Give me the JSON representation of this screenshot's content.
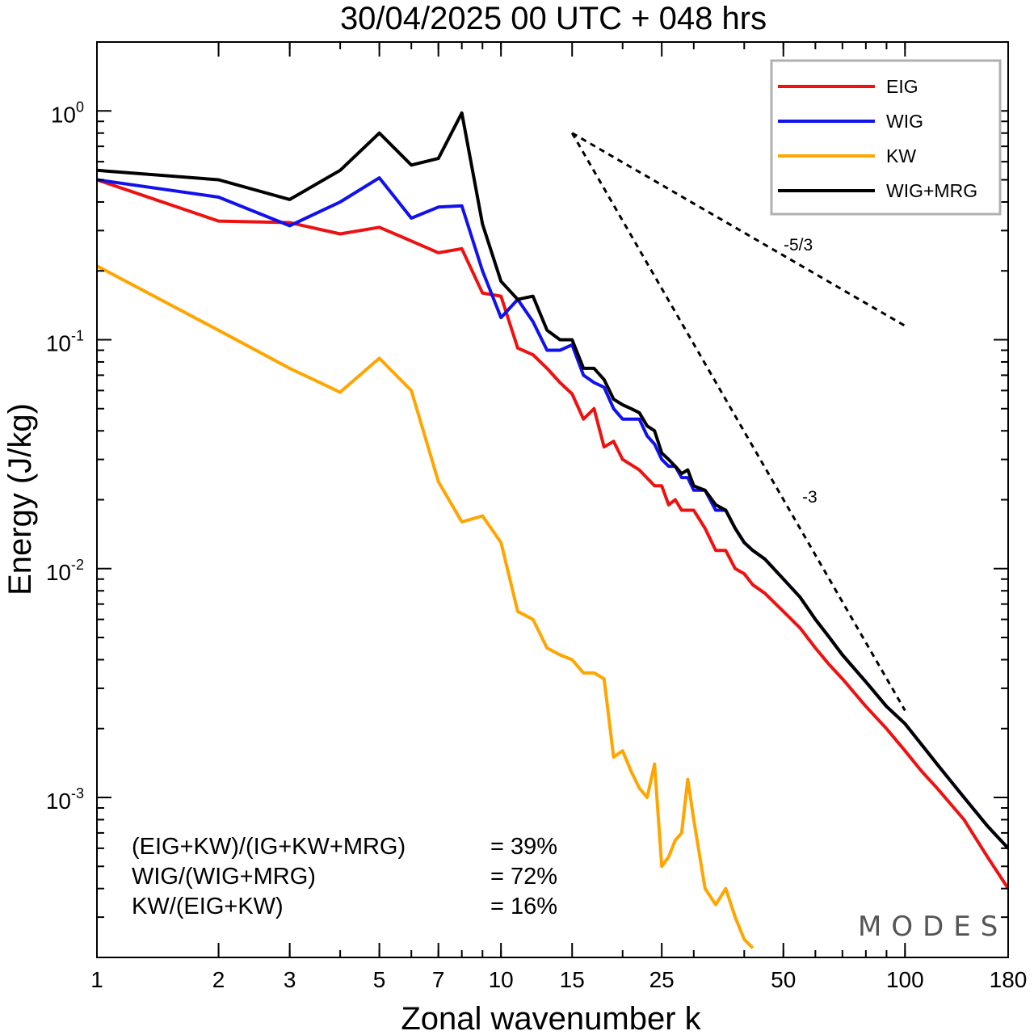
{
  "chart_data": {
    "type": "line",
    "title": "30/04/2025  00 UTC  + 048 hrs",
    "xlabel": "Zonal wavenumber k",
    "ylabel": "Energy (J/kg)",
    "xscale": "log",
    "yscale": "log",
    "xlim": [
      1,
      180
    ],
    "ylim": [
      0.0002,
      2
    ],
    "xticks": [
      1,
      2,
      3,
      5,
      7,
      10,
      15,
      25,
      50,
      100,
      180
    ],
    "xtick_labels": [
      "1",
      "2",
      "3",
      "5",
      "7",
      "10",
      "15",
      "25",
      "50",
      "100",
      "180"
    ],
    "yticks": [
      {
        "base": "10",
        "exp": "0"
      },
      {
        "base": "10",
        "exp": "-1"
      },
      {
        "base": "10",
        "exp": "-2"
      },
      {
        "base": "10",
        "exp": "-3"
      }
    ],
    "legend_position": "top-right",
    "series": [
      {
        "name": "EIG",
        "color": "#ee1111",
        "points": [
          [
            1,
            0.5
          ],
          [
            2,
            0.33
          ],
          [
            3,
            0.325
          ],
          [
            4,
            0.29
          ],
          [
            5,
            0.31
          ],
          [
            6,
            0.27
          ],
          [
            7,
            0.24
          ],
          [
            8,
            0.25
          ],
          [
            9,
            0.16
          ],
          [
            10,
            0.155
          ],
          [
            11,
            0.092
          ],
          [
            12,
            0.086
          ],
          [
            13,
            0.075
          ],
          [
            14,
            0.065
          ],
          [
            15,
            0.058
          ],
          [
            16,
            0.045
          ],
          [
            17,
            0.05
          ],
          [
            18,
            0.034
          ],
          [
            19,
            0.036
          ],
          [
            20,
            0.03
          ],
          [
            22,
            0.027
          ],
          [
            24,
            0.023
          ],
          [
            25,
            0.023
          ],
          [
            26,
            0.019
          ],
          [
            27,
            0.02
          ],
          [
            28,
            0.018
          ],
          [
            30,
            0.018
          ],
          [
            32,
            0.015
          ],
          [
            34,
            0.012
          ],
          [
            36,
            0.012
          ],
          [
            38,
            0.01
          ],
          [
            40,
            0.0095
          ],
          [
            42,
            0.0085
          ],
          [
            45,
            0.0078
          ],
          [
            50,
            0.0065
          ],
          [
            55,
            0.0055
          ],
          [
            60,
            0.0045
          ],
          [
            65,
            0.0038
          ],
          [
            70,
            0.0033
          ],
          [
            80,
            0.0025
          ],
          [
            90,
            0.002
          ],
          [
            100,
            0.0016
          ],
          [
            110,
            0.0013
          ],
          [
            120,
            0.0011
          ],
          [
            140,
            0.0008
          ],
          [
            160,
            0.00055
          ],
          [
            180,
            0.0004
          ]
        ]
      },
      {
        "name": "WIG",
        "color": "#1111ee",
        "points": [
          [
            1,
            0.5
          ],
          [
            2,
            0.42
          ],
          [
            3,
            0.315
          ],
          [
            4,
            0.4
          ],
          [
            5,
            0.51
          ],
          [
            6,
            0.34
          ],
          [
            7,
            0.38
          ],
          [
            8,
            0.385
          ],
          [
            9,
            0.2
          ],
          [
            10,
            0.125
          ],
          [
            11,
            0.15
          ],
          [
            12,
            0.12
          ],
          [
            13,
            0.09
          ],
          [
            14,
            0.09
          ],
          [
            15,
            0.095
          ],
          [
            16,
            0.07
          ],
          [
            17,
            0.065
          ],
          [
            18,
            0.062
          ],
          [
            19,
            0.05
          ],
          [
            20,
            0.045
          ],
          [
            21,
            0.045
          ],
          [
            22,
            0.045
          ],
          [
            23,
            0.038
          ],
          [
            24,
            0.035
          ],
          [
            25,
            0.03
          ],
          [
            26,
            0.028
          ],
          [
            27,
            0.028
          ],
          [
            28,
            0.025
          ],
          [
            29,
            0.025
          ],
          [
            30,
            0.022
          ],
          [
            32,
            0.022
          ],
          [
            34,
            0.018
          ],
          [
            36,
            0.018
          ],
          [
            38,
            0.015
          ],
          [
            40,
            0.013
          ],
          [
            42,
            0.012
          ],
          [
            45,
            0.011
          ],
          [
            50,
            0.009
          ],
          [
            55,
            0.0075
          ],
          [
            60,
            0.006
          ],
          [
            65,
            0.005
          ],
          [
            70,
            0.0042
          ],
          [
            80,
            0.0032
          ],
          [
            90,
            0.0025
          ],
          [
            100,
            0.0021
          ],
          [
            110,
            0.0017
          ],
          [
            120,
            0.0014
          ],
          [
            140,
            0.001
          ],
          [
            160,
            0.00075
          ],
          [
            180,
            0.0006
          ]
        ]
      },
      {
        "name": "KW",
        "color": "#ffa500",
        "points": [
          [
            1,
            0.21
          ],
          [
            2,
            0.11
          ],
          [
            3,
            0.075
          ],
          [
            4,
            0.059
          ],
          [
            5,
            0.083
          ],
          [
            6,
            0.06
          ],
          [
            7,
            0.024
          ],
          [
            8,
            0.016
          ],
          [
            9,
            0.017
          ],
          [
            10,
            0.013
          ],
          [
            11,
            0.0065
          ],
          [
            12,
            0.006
          ],
          [
            13,
            0.0045
          ],
          [
            14,
            0.0042
          ],
          [
            15,
            0.004
          ],
          [
            16,
            0.0035
          ],
          [
            17,
            0.0035
          ],
          [
            18,
            0.0033
          ],
          [
            19,
            0.0015
          ],
          [
            20,
            0.0016
          ],
          [
            21,
            0.0013
          ],
          [
            22,
            0.0011
          ],
          [
            23,
            0.001
          ],
          [
            24,
            0.0014
          ],
          [
            25,
            0.0005
          ],
          [
            26,
            0.00055
          ],
          [
            27,
            0.00065
          ],
          [
            28,
            0.0007
          ],
          [
            29,
            0.0012
          ],
          [
            30,
            0.0008
          ],
          [
            32,
            0.0004
          ],
          [
            34,
            0.00034
          ],
          [
            36,
            0.0004
          ],
          [
            38,
            0.0003
          ],
          [
            40,
            0.00024
          ],
          [
            42,
            0.00022
          ]
        ]
      },
      {
        "name": "WIG+MRG",
        "color": "#000000",
        "points": [
          [
            1,
            0.55
          ],
          [
            2,
            0.5
          ],
          [
            3,
            0.41
          ],
          [
            4,
            0.55
          ],
          [
            5,
            0.8
          ],
          [
            6,
            0.58
          ],
          [
            7,
            0.62
          ],
          [
            8,
            0.98
          ],
          [
            9,
            0.32
          ],
          [
            10,
            0.18
          ],
          [
            11,
            0.15
          ],
          [
            12,
            0.155
          ],
          [
            13,
            0.11
          ],
          [
            14,
            0.1
          ],
          [
            15,
            0.1
          ],
          [
            16,
            0.075
          ],
          [
            17,
            0.075
          ],
          [
            18,
            0.067
          ],
          [
            19,
            0.055
          ],
          [
            20,
            0.052
          ],
          [
            21,
            0.05
          ],
          [
            22,
            0.048
          ],
          [
            23,
            0.042
          ],
          [
            24,
            0.04
          ],
          [
            25,
            0.032
          ],
          [
            26,
            0.03
          ],
          [
            27,
            0.028
          ],
          [
            28,
            0.026
          ],
          [
            29,
            0.027
          ],
          [
            30,
            0.023
          ],
          [
            32,
            0.022
          ],
          [
            34,
            0.019
          ],
          [
            36,
            0.018
          ],
          [
            38,
            0.015
          ],
          [
            40,
            0.013
          ],
          [
            42,
            0.012
          ],
          [
            45,
            0.011
          ],
          [
            50,
            0.009
          ],
          [
            55,
            0.0075
          ],
          [
            60,
            0.006
          ],
          [
            65,
            0.005
          ],
          [
            70,
            0.0042
          ],
          [
            80,
            0.0032
          ],
          [
            90,
            0.0025
          ],
          [
            100,
            0.0021
          ],
          [
            110,
            0.0017
          ],
          [
            120,
            0.0014
          ],
          [
            140,
            0.001
          ],
          [
            160,
            0.00075
          ],
          [
            180,
            0.0006
          ]
        ]
      }
    ],
    "reference_lines": [
      {
        "label": "-5/3",
        "points": [
          [
            15,
            0.8
          ],
          [
            100,
            0.115
          ]
        ]
      },
      {
        "label": "-3",
        "points": [
          [
            15,
            0.8
          ],
          [
            100,
            0.0024
          ]
        ]
      }
    ],
    "annotations": [
      {
        "label": "(EIG+KW)/(IG+KW+MRG)",
        "value": "= 39%"
      },
      {
        "label": "WIG/(WIG+MRG)",
        "value": "= 72%"
      },
      {
        "label": "KW/(EIG+KW)",
        "value": "= 16%"
      }
    ],
    "watermark": "MODES"
  }
}
